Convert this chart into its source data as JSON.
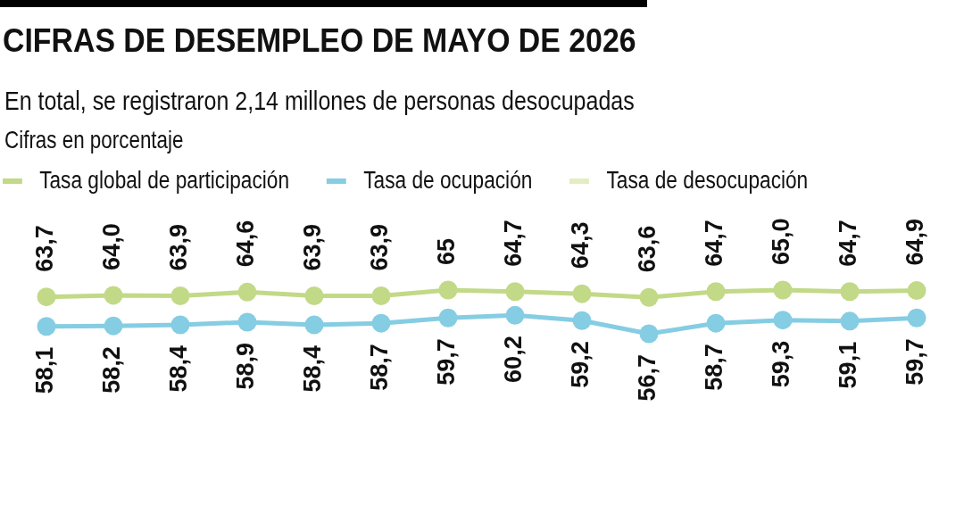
{
  "chart_data": {
    "type": "line",
    "title": "CIFRAS DE DESEMPLEO DE MAYO DE 2026",
    "subtitle": "En total, se registraron 2,14 millones de personas desocupadas",
    "annotations": [
      "Cifras en porcentaje"
    ],
    "categories": [
      null,
      null,
      null,
      null,
      null,
      null,
      null,
      null,
      null,
      null,
      null,
      null,
      null,
      null
    ],
    "series": [
      {
        "name": "Tasa global de participación",
        "color": "#c2d987",
        "values": [
          63.7,
          64.0,
          63.9,
          64.6,
          63.9,
          63.9,
          65,
          64.7,
          64.3,
          63.6,
          64.7,
          65.0,
          64.7,
          64.9
        ],
        "value_labels": [
          "63,7",
          "64,0",
          "63,9",
          "64,6",
          "63,9",
          "63,9",
          "65",
          "64,7",
          "64,3",
          "63,6",
          "64,7",
          "65,0",
          "64,7",
          "64,9"
        ]
      },
      {
        "name": "Tasa de ocupación",
        "color": "#85cde3",
        "values": [
          58.1,
          58.2,
          58.4,
          58.9,
          58.4,
          58.7,
          59.7,
          60.2,
          59.2,
          56.7,
          58.7,
          59.3,
          59.1,
          59.7
        ],
        "value_labels": [
          "58,1",
          "58,2",
          "58,4",
          "58,9",
          "58,4",
          "58,7",
          "59,7",
          "60,2",
          "59,2",
          "56,7",
          "58,7",
          "59,3",
          "59,1",
          "59,7"
        ]
      },
      {
        "name": "Tasa de desocupación",
        "color": "#e3edc2",
        "values": [
          null,
          null,
          null,
          null,
          null,
          null,
          null,
          null,
          null,
          null,
          null,
          null,
          null,
          null
        ]
      }
    ],
    "tick_labels": false,
    "legend": "top",
    "marker": "circle"
  }
}
